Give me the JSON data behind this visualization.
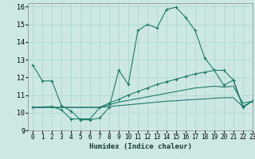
{
  "xlabel": "Humidex (Indice chaleur)",
  "xlim": [
    -0.5,
    23
  ],
  "ylim": [
    9,
    16.2
  ],
  "yticks": [
    9,
    10,
    11,
    12,
    13,
    14,
    15,
    16
  ],
  "xticks": [
    0,
    1,
    2,
    3,
    4,
    5,
    6,
    7,
    8,
    9,
    10,
    11,
    12,
    13,
    14,
    15,
    16,
    17,
    18,
    19,
    20,
    21,
    22,
    23
  ],
  "bg_color": "#cde8e4",
  "line_color": "#1e7a6a",
  "grid_color": "#b0d8d2",
  "line1_x": [
    0,
    1,
    2,
    3,
    4,
    5,
    6,
    7,
    8,
    9,
    10,
    11,
    12,
    13,
    14,
    15,
    16,
    17,
    18,
    19,
    20,
    21,
    22,
    23
  ],
  "line1_y": [
    12.7,
    11.8,
    11.8,
    10.4,
    10.1,
    9.6,
    9.6,
    9.7,
    10.3,
    12.4,
    11.6,
    14.65,
    15.0,
    14.8,
    15.85,
    15.97,
    15.4,
    14.65,
    13.1,
    12.4,
    12.4,
    11.85,
    10.3,
    10.65
  ],
  "line2_x": [
    0,
    2,
    3,
    4,
    5,
    6,
    7,
    8,
    9,
    10,
    11,
    12,
    13,
    14,
    15,
    16,
    17,
    18,
    19,
    20,
    21,
    22,
    23
  ],
  "line2_y": [
    10.3,
    10.35,
    10.15,
    9.65,
    9.65,
    9.65,
    10.3,
    10.55,
    10.75,
    11.0,
    11.2,
    11.4,
    11.6,
    11.75,
    11.9,
    12.05,
    12.2,
    12.3,
    12.4,
    11.55,
    11.85,
    10.35,
    10.65
  ],
  "line3_x": [
    0,
    2,
    3,
    4,
    5,
    6,
    7,
    8,
    9,
    10,
    11,
    12,
    13,
    14,
    15,
    16,
    17,
    18,
    19,
    20,
    21,
    22,
    23
  ],
  "line3_y": [
    10.3,
    10.3,
    10.3,
    10.3,
    10.3,
    10.3,
    10.3,
    10.45,
    10.6,
    10.7,
    10.8,
    10.9,
    11.0,
    11.1,
    11.2,
    11.3,
    11.4,
    11.45,
    11.5,
    11.45,
    11.5,
    10.55,
    10.65
  ],
  "line4_x": [
    0,
    2,
    3,
    4,
    5,
    6,
    7,
    8,
    9,
    10,
    11,
    12,
    13,
    14,
    15,
    16,
    17,
    18,
    19,
    20,
    21,
    22,
    23
  ],
  "line4_y": [
    10.3,
    10.3,
    10.3,
    10.3,
    10.3,
    10.3,
    10.3,
    10.35,
    10.4,
    10.45,
    10.5,
    10.55,
    10.6,
    10.65,
    10.68,
    10.72,
    10.75,
    10.78,
    10.82,
    10.85,
    10.85,
    10.35,
    10.65
  ]
}
